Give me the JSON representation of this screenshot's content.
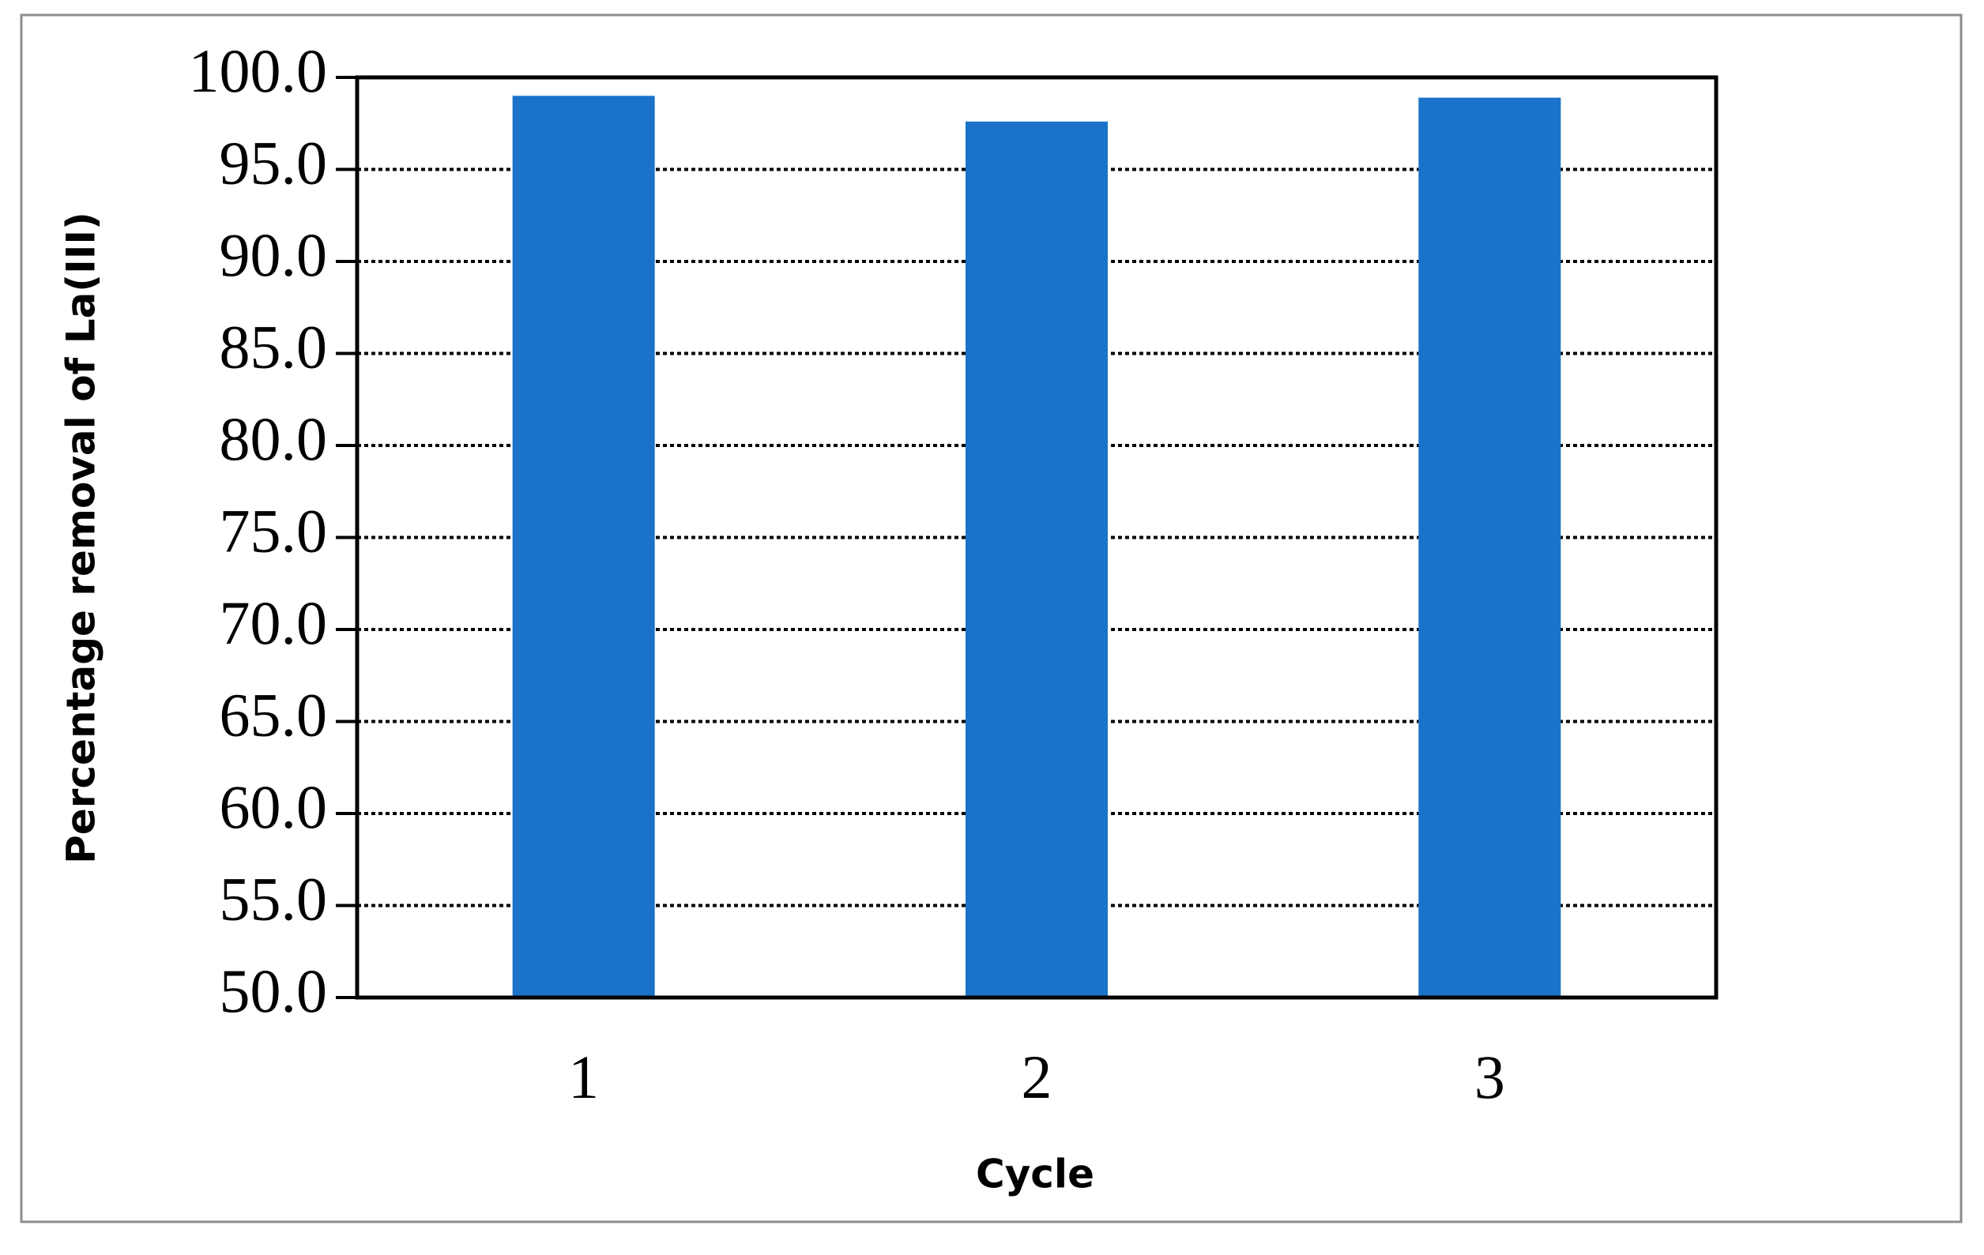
{
  "chart_data": {
    "type": "bar",
    "x_label": "Cycle",
    "y_label": "Percentage removal of La(III)",
    "categories": [
      "1",
      "2",
      "3"
    ],
    "values": [
      99.0,
      97.6,
      98.9
    ],
    "color": "#1a73c8",
    "ylim": [
      50,
      100
    ],
    "yticks": [
      {
        "value": 50,
        "label": "50.0"
      },
      {
        "value": 55,
        "label": "55.0"
      },
      {
        "value": 60,
        "label": "60.0"
      },
      {
        "value": 65,
        "label": "65.0"
      },
      {
        "value": 70,
        "label": "70.0"
      },
      {
        "value": 75,
        "label": "75.0"
      },
      {
        "value": 80,
        "label": "80.0"
      },
      {
        "value": 85,
        "label": "85.0"
      },
      {
        "value": 90,
        "label": "90.0"
      },
      {
        "value": 95,
        "label": "95.0"
      },
      {
        "value": 100,
        "label": "100.0"
      }
    ],
    "grid": true
  }
}
